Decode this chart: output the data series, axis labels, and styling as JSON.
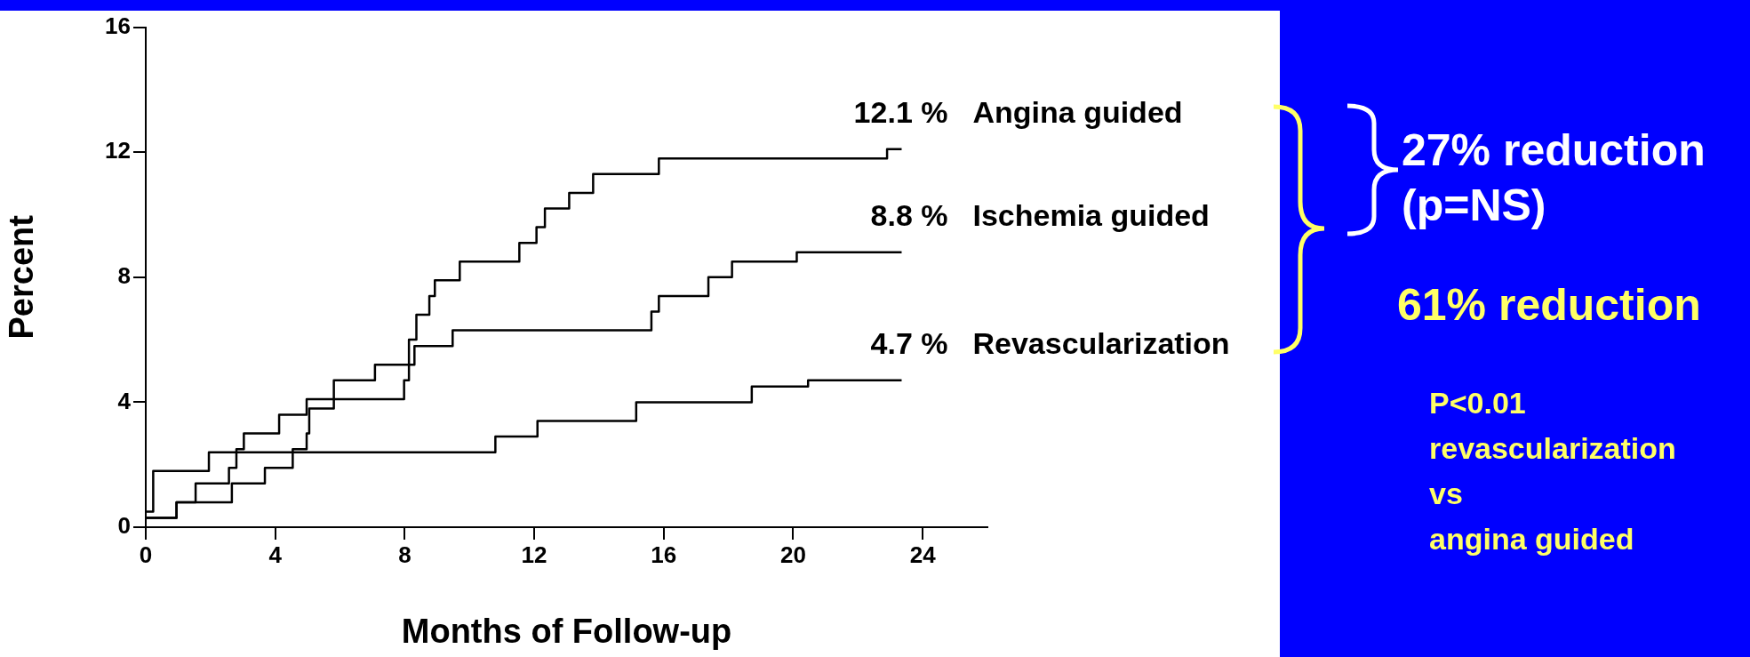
{
  "chart_data": {
    "type": "step",
    "xlabel": "Months of Follow-up",
    "ylabel": "Percent",
    "xlim": [
      0,
      26
    ],
    "xticks": [
      0,
      4,
      8,
      12,
      16,
      20,
      24
    ],
    "ylim": [
      0,
      16
    ],
    "yticks": [
      0,
      4,
      8,
      12,
      16
    ],
    "series": [
      {
        "name": "Angina guided",
        "color": "#000000",
        "x": [
          0,
          0.95,
          1.54,
          2.57,
          2.8,
          3.03,
          4.12,
          4.97,
          7.98,
          8.13,
          8.36,
          8.76,
          8.93,
          9.7,
          11.54,
          12.07,
          12.33,
          13.08,
          13.82,
          15.85,
          22.9,
          23.35
        ],
        "values": [
          0.3,
          0.8,
          1.4,
          1.9,
          2.5,
          3.0,
          3.6,
          4.1,
          4.7,
          6.0,
          6.8,
          7.4,
          7.9,
          8.5,
          9.1,
          9.6,
          10.2,
          10.7,
          11.3,
          11.8,
          12.1,
          12.1
        ],
        "value_labels": [
          null,
          null,
          null,
          null,
          null,
          null,
          null,
          null,
          null,
          null,
          null,
          null,
          null,
          null,
          null,
          null,
          null,
          null,
          null,
          null,
          null,
          "12.1 %"
        ]
      },
      {
        "name": "Ischemia guided",
        "color": "#000000",
        "x": [
          0,
          0.95,
          2.66,
          3.68,
          4.54,
          4.97,
          5.05,
          5.81,
          7.08,
          8.3,
          9.48,
          15.62,
          15.85,
          17.38,
          18.11,
          20.11,
          23.35
        ],
        "values": [
          0.3,
          0.8,
          1.4,
          1.9,
          2.5,
          3.0,
          3.8,
          4.7,
          5.2,
          5.8,
          6.3,
          6.9,
          7.4,
          8.0,
          8.5,
          8.8,
          8.8
        ],
        "value_labels": [
          null,
          null,
          null,
          null,
          null,
          null,
          null,
          null,
          null,
          null,
          null,
          null,
          null,
          null,
          null,
          null,
          "8.8 %"
        ]
      },
      {
        "name": "Revascularization",
        "color": "#000000",
        "x": [
          0,
          0.23,
          1.95,
          10.8,
          12.1,
          15.15,
          18.72,
          20.46,
          23.35
        ],
        "values": [
          0.5,
          1.8,
          2.4,
          2.9,
          3.4,
          4.0,
          4.5,
          4.7,
          4.7
        ],
        "value_labels": [
          null,
          null,
          null,
          null,
          null,
          null,
          null,
          null,
          "4.7 %"
        ]
      }
    ],
    "annotations": [
      "27% reduction\n(p=NS)",
      "61% reduction",
      "P<0.01\nrevascularization\nvs\nangina guided"
    ]
  }
}
